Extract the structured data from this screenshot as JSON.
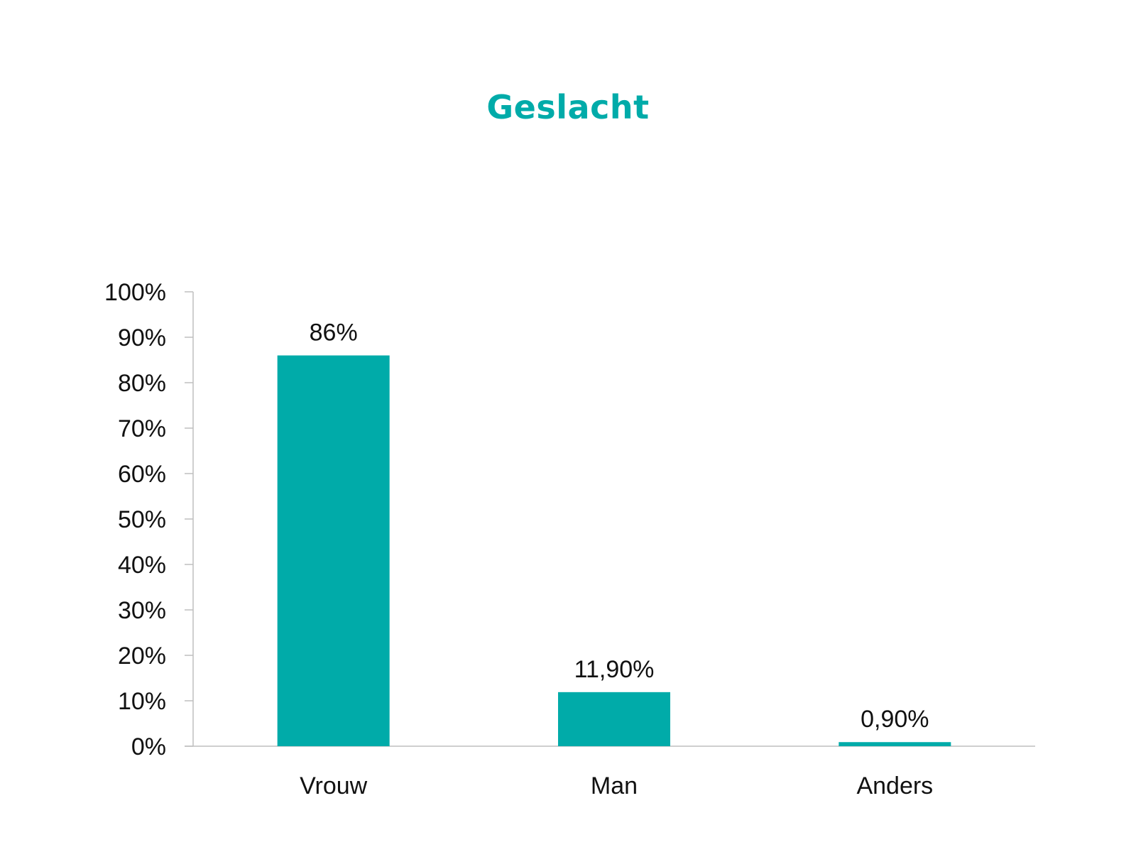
{
  "chart_data": {
    "type": "bar",
    "title": "Geslacht",
    "categories": [
      "Vrouw",
      "Man",
      "Anders"
    ],
    "values": [
      86,
      11.9,
      0.9
    ],
    "data_labels": [
      "86%",
      "11,90%",
      "0,90%"
    ],
    "xlabel": "",
    "ylabel": "",
    "ylim": [
      0,
      100
    ],
    "yticks": [
      0,
      10,
      20,
      30,
      40,
      50,
      60,
      70,
      80,
      90,
      100
    ],
    "ytick_labels": [
      "0%",
      "10%",
      "20%",
      "30%",
      "40%",
      "50%",
      "60%",
      "70%",
      "80%",
      "90%",
      "100%"
    ],
    "grid": false,
    "legend": "none",
    "colors": {
      "bar": "#00aba9",
      "title": "#00aba9",
      "axis": "#bfbfbf"
    }
  }
}
